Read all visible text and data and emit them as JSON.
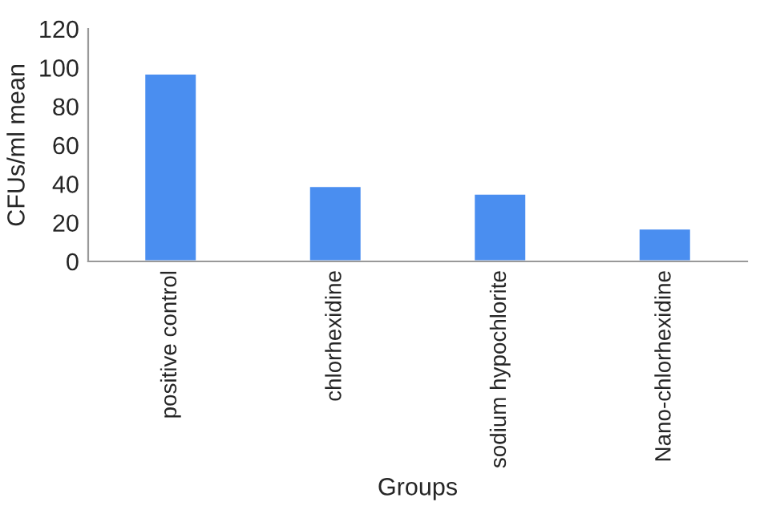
{
  "chart_data": {
    "type": "bar",
    "xlabel": "Groups",
    "ylabel": "CFUs/ml mean",
    "categories": [
      "positive control",
      "chlorhexidine",
      "sodium hypochlorite",
      "Nano-chlorhexidine"
    ],
    "values": [
      97,
      39,
      35,
      17
    ],
    "color": "#4a8ef0",
    "ylim": [
      0,
      120
    ],
    "yticks": [
      0,
      20,
      40,
      60,
      80,
      100,
      120
    ],
    "grid": false,
    "legend": false
  }
}
